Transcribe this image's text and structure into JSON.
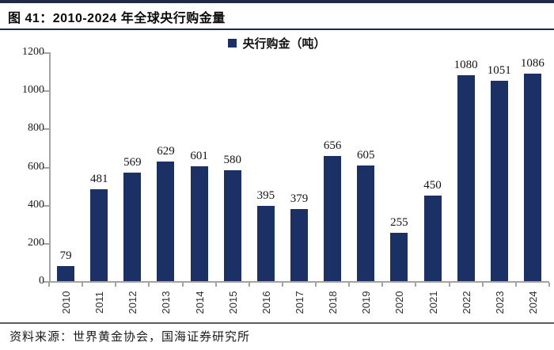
{
  "header": {
    "title": "图 41：2010-2024 年全球央行购金量"
  },
  "legend": {
    "label": "央行购金（吨）"
  },
  "chart_data": {
    "type": "bar",
    "title": "图 41：2010-2024 年全球央行购金量",
    "legend_entries": [
      "央行购金（吨）"
    ],
    "legend_position": "top-center",
    "categories": [
      "2010",
      "2011",
      "2012",
      "2013",
      "2014",
      "2015",
      "2016",
      "2017",
      "2018",
      "2019",
      "2020",
      "2021",
      "2022",
      "2023",
      "2024"
    ],
    "values": [
      79,
      481,
      569,
      629,
      601,
      580,
      395,
      379,
      656,
      605,
      255,
      450,
      1080,
      1051,
      1086
    ],
    "data_labels": true,
    "xlabel": "",
    "ylabel": "",
    "ylim": [
      0,
      1200
    ],
    "yticks": [
      0,
      200,
      400,
      600,
      800,
      1000,
      1200
    ],
    "grid": false,
    "x_tick_rotation_deg": 90
  },
  "colors": {
    "bar": "#1b3064",
    "accent_rule": "#1f2b47",
    "axis": "#a3a3a3"
  },
  "footer": {
    "source": "资料来源：世界黄金协会，国海证券研究所"
  }
}
